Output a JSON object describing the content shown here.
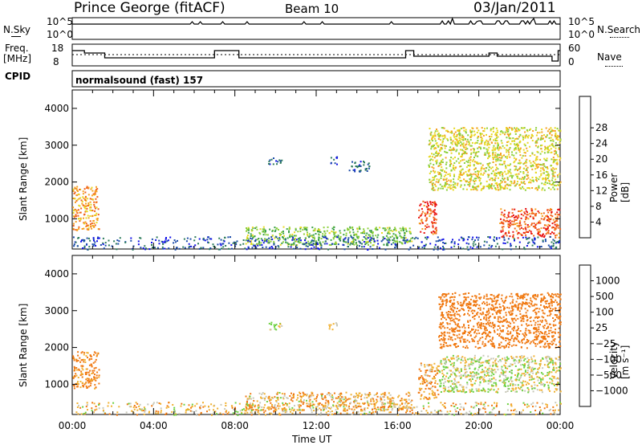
{
  "header": {
    "site": "Prince George (fitACF)",
    "beam": "Beam 10",
    "date": "03/Jan/2011"
  },
  "sky_panel": {
    "left_label": "N.Sky",
    "right_label": "N.Search",
    "left_ticks": [
      "10^5",
      "10^0"
    ],
    "right_ticks": [
      "10^5",
      "10^0"
    ]
  },
  "freq_panel": {
    "left_label_1": "Freq.",
    "left_label_2": "[MHz]",
    "right_label": "Nave",
    "left_ticks": [
      "18",
      "8"
    ],
    "right_ticks": [
      "60",
      "0"
    ]
  },
  "cpid": {
    "label": "CPID",
    "value": "normalsound (fast)  157"
  },
  "chart_data": [
    {
      "type": "heatmap",
      "title": "",
      "ylabel": "Slant Range [km]",
      "xlabel": "",
      "x_ticks": [
        "00:00",
        "04:00",
        "08:00",
        "12:00",
        "16:00",
        "20:00",
        "00:00"
      ],
      "y_ticks": [
        "1000",
        "2000",
        "3000",
        "4000"
      ],
      "ylim": [
        180,
        4500
      ],
      "xlim_hours": [
        0,
        24
      ],
      "colorbar": {
        "label": "Power [dB]",
        "ticks": [
          "4",
          "8",
          "12",
          "16",
          "20",
          "24",
          "28"
        ],
        "range": [
          0,
          30
        ],
        "colors": [
          "#1010e8",
          "#1a4aa8",
          "#2b7a5a",
          "#3aa047",
          "#8ccf3a",
          "#e8d820",
          "#f5a020",
          "#f06018",
          "#e81010"
        ]
      },
      "echo_regions": [
        {
          "t0": 0.0,
          "t1": 1.3,
          "r0": 700,
          "r1": 1900,
          "level": 22
        },
        {
          "t0": 8.5,
          "t1": 16.7,
          "r0": 300,
          "r1": 800,
          "level": 14
        },
        {
          "t0": 9.6,
          "t1": 10.3,
          "r0": 2500,
          "r1": 2700,
          "level": 6
        },
        {
          "t0": 12.6,
          "t1": 13.0,
          "r0": 2500,
          "r1": 2700,
          "level": 6
        },
        {
          "t0": 13.6,
          "t1": 14.6,
          "r0": 2300,
          "r1": 2600,
          "level": 6
        },
        {
          "t0": 17.0,
          "t1": 17.9,
          "r0": 600,
          "r1": 1500,
          "level": 26
        },
        {
          "t0": 17.5,
          "t1": 24.0,
          "r0": 1800,
          "r1": 3500,
          "level": 18
        },
        {
          "t0": 21.0,
          "t1": 24.0,
          "r0": 500,
          "r1": 1300,
          "level": 26
        }
      ]
    },
    {
      "type": "heatmap",
      "title": "",
      "ylabel": "Slant Range [km]",
      "xlabel": "Time UT",
      "x_ticks": [
        "00:00",
        "04:00",
        "08:00",
        "12:00",
        "16:00",
        "20:00",
        "00:00"
      ],
      "y_ticks": [
        "1000",
        "2000",
        "3000",
        "4000"
      ],
      "ylim": [
        180,
        4500
      ],
      "xlim_hours": [
        0,
        24
      ],
      "colorbar": {
        "label": "Velocity [m s⁻¹]",
        "ticks": [
          "1000",
          "500",
          "100",
          "25",
          "−25",
          "−100",
          "−500",
          "−1000"
        ],
        "colors": [
          "#1f3fc0",
          "#1f6ab0",
          "#2f9a5a",
          "#6cd040",
          "#c8c8b8",
          "#f0b030",
          "#f07810",
          "#e83010",
          "#e81010"
        ]
      },
      "echo_regions": [
        {
          "t0": 0.0,
          "t1": 1.3,
          "r0": 900,
          "r1": 1900,
          "vel": -150
        },
        {
          "t0": 8.5,
          "t1": 16.7,
          "r0": 300,
          "r1": 800,
          "vel": -60
        },
        {
          "t0": 9.6,
          "t1": 10.3,
          "r0": 2500,
          "r1": 2700,
          "vel": 0
        },
        {
          "t0": 12.6,
          "t1": 13.0,
          "r0": 2500,
          "r1": 2700,
          "vel": 0
        },
        {
          "t0": 17.0,
          "t1": 18.0,
          "r0": 600,
          "r1": 1600,
          "vel": -100
        },
        {
          "t0": 18.0,
          "t1": 24.0,
          "r0": 2000,
          "r1": 3500,
          "vel": -300
        },
        {
          "t0": 18.0,
          "t1": 24.0,
          "r0": 800,
          "r1": 1800,
          "vel": 0
        }
      ]
    }
  ]
}
